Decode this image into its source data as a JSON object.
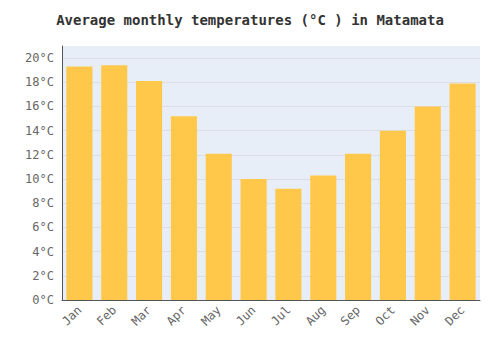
{
  "chart_data": {
    "type": "bar",
    "title": "Average monthly temperatures (°C ) in Matamata",
    "categories": [
      "Jan",
      "Feb",
      "Mar",
      "Apr",
      "May",
      "Jun",
      "Jul",
      "Aug",
      "Sep",
      "Oct",
      "Nov",
      "Dec"
    ],
    "values": [
      19.3,
      19.4,
      18.1,
      15.2,
      12.1,
      10.0,
      9.2,
      10.3,
      12.1,
      14.0,
      16.0,
      17.9
    ],
    "color": "#FFC84A",
    "ylim": [
      0,
      21
    ],
    "yticks": [
      {
        "value": 0,
        "label": "0°C"
      },
      {
        "value": 2,
        "label": "2°C"
      },
      {
        "value": 4,
        "label": "4°C"
      },
      {
        "value": 6,
        "label": "6°C"
      },
      {
        "value": 8,
        "label": "8°C"
      },
      {
        "value": 10,
        "label": "10°C"
      },
      {
        "value": 12,
        "label": "12°C"
      },
      {
        "value": 14,
        "label": "14°C"
      },
      {
        "value": 16,
        "label": "16°C"
      },
      {
        "value": 18,
        "label": "18°C"
      },
      {
        "value": 20,
        "label": "20°C"
      }
    ],
    "grid": true
  }
}
